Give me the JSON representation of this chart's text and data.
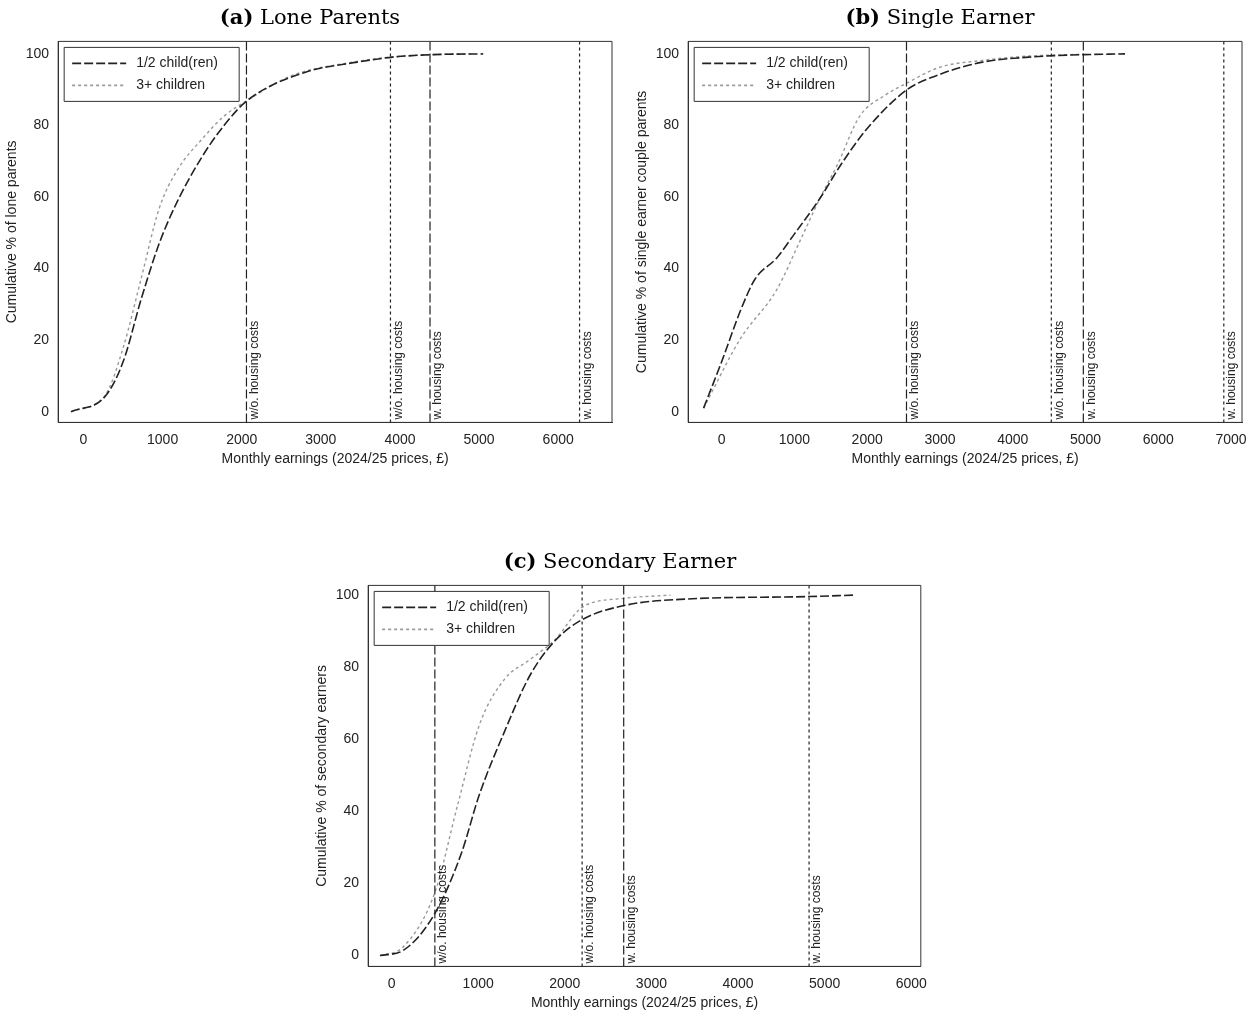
{
  "chart_data": [
    {
      "type": "line",
      "title": "(a) Lone Parents",
      "xlabel": "Monthly earnings (2024/25 prices, £)",
      "ylabel": "Cumulative % of lone parents",
      "xlim": [
        -320,
        6680
      ],
      "xticks": [
        0,
        1000,
        2000,
        3000,
        4000,
        5000,
        6000
      ],
      "ylim": [
        -3,
        103.5
      ],
      "yticks": [
        0,
        20,
        40,
        60,
        80,
        100
      ],
      "grid": false,
      "legend": "top left",
      "marker": "none",
      "series": [
        {
          "name": "1/2 child(ren)",
          "color": "#222222",
          "line_style": "dashed",
          "x": [
            -158,
            275,
            502,
            730,
            957,
            1185,
            1503,
            1776,
            2071,
            2777,
            3460,
            3911,
            4415,
            5052
          ],
          "values": [
            0,
            4.3,
            14,
            31.5,
            47,
            58.7,
            71.4,
            80,
            87,
            94.7,
            97.7,
            99.1,
            99.8,
            100
          ]
        },
        {
          "name": "3+ children",
          "color": "#999999",
          "line_style": "dotted",
          "x": [
            -158,
            275,
            502,
            730,
            957,
            1185,
            1503,
            1776,
            2071,
            2630,
            3460,
            3911,
            4415,
            4900
          ],
          "values": [
            0,
            4.6,
            17.9,
            37.3,
            56.8,
            67.5,
            76.3,
            82.6,
            87,
            93.9,
            97.9,
            99.2,
            99.8,
            100
          ]
        }
      ],
      "ref_lines": [
        {
          "axis": "x",
          "value": 2060,
          "label": "w/o. housing costs",
          "line_style": "dashed",
          "color": "#222222"
        },
        {
          "axis": "x",
          "value": 3880,
          "label": "w/o. housing costs",
          "line_style": "dotted",
          "color": "#222222"
        },
        {
          "axis": "x",
          "value": 4380,
          "label": "w. housing costs",
          "line_style": "dashed",
          "color": "#222222"
        },
        {
          "axis": "x",
          "value": 6270,
          "label": "w. housing costs",
          "line_style": "dotted",
          "color": "#222222"
        }
      ]
    },
    {
      "type": "line",
      "title": "(b) Single Earner",
      "xlabel": "Monthly earnings (2024/25 prices, £)",
      "ylabel": "Cumulative % of single earner couple parents",
      "xlim": [
        -460,
        7150
      ],
      "xticks": [
        0,
        1000,
        2000,
        3000,
        4000,
        5000,
        6000,
        7000
      ],
      "ylim": [
        -3,
        103.5
      ],
      "yticks": [
        0,
        20,
        40,
        60,
        80,
        100
      ],
      "grid": false,
      "legend": "top left",
      "marker": "none",
      "series": [
        {
          "name": "1/2 child(ren)",
          "color": "#222222",
          "line_style": "dashed",
          "x": [
            -248,
            10,
            258,
            457,
            754,
            1001,
            1347,
            1647,
            1994,
            2540,
            2986,
            3582,
            4222,
            4971,
            5543
          ],
          "values": [
            1,
            14.5,
            28.2,
            37,
            42.9,
            49.7,
            59.5,
            69.3,
            79,
            89.9,
            94.2,
            97.7,
            99.1,
            99.8,
            100
          ]
        },
        {
          "name": "3+ children",
          "color": "#999999",
          "line_style": "dotted",
          "x": [
            -248,
            258,
            754,
            1101,
            1347,
            1597,
            1894,
            2242,
            2540,
            2986,
            3582,
            4222,
            4971
          ],
          "values": [
            1,
            20.4,
            34,
            48.8,
            59.5,
            69.3,
            82.5,
            88.4,
            91.8,
            96.2,
            98.2,
            99.4,
            99.9
          ]
        }
      ],
      "ref_lines": [
        {
          "axis": "x",
          "value": 2540,
          "label": "w/o. housing costs",
          "line_style": "dashed",
          "color": "#222222"
        },
        {
          "axis": "x",
          "value": 4530,
          "label": "w/o. housing costs",
          "line_style": "dotted",
          "color": "#222222"
        },
        {
          "axis": "x",
          "value": 4970,
          "label": "w. housing costs",
          "line_style": "dashed",
          "color": "#222222"
        },
        {
          "axis": "x",
          "value": 6900,
          "label": "w. housing costs",
          "line_style": "dotted",
          "color": "#222222"
        }
      ]
    },
    {
      "type": "line",
      "title": "(c) Secondary Earner",
      "xlabel": "Monthly earnings (2024/25 prices, £)",
      "ylabel": "Cumulative % of secondary earners",
      "xlim": [
        -270,
        6110
      ],
      "xticks": [
        0,
        1000,
        2000,
        3000,
        4000,
        5000,
        6000
      ],
      "ylim": [
        -3,
        102.7
      ],
      "yticks": [
        0,
        20,
        40,
        60,
        80,
        100
      ],
      "grid": false,
      "legend": "top left",
      "marker": "none",
      "series": [
        {
          "name": "1/2 child(ren)",
          "color": "#222222",
          "line_style": "dashed",
          "x": [
            -133,
            139,
            500,
            805,
            1014,
            1305,
            1597,
            1889,
            2200,
            2680,
            3389,
            4818,
            5327
          ],
          "values": [
            0,
            1.5,
            11.7,
            28.3,
            44.7,
            62.2,
            77.7,
            87.4,
            93.2,
            97.1,
            98.9,
            99.6,
            100
          ]
        },
        {
          "name": "3+ children",
          "color": "#999999",
          "line_style": "dotted",
          "x": [
            -133,
            139,
            500,
            763,
            1014,
            1305,
            1597,
            1889,
            2200,
            2680,
            3221
          ],
          "values": [
            0,
            2.5,
            17.5,
            41.8,
            64,
            76.7,
            82.1,
            87.7,
            96.6,
            99.1,
            100
          ]
        }
      ],
      "ref_lines": [
        {
          "axis": "x",
          "value": 500,
          "label": "w/o. housing costs",
          "line_style": "dashed",
          "color": "#222222"
        },
        {
          "axis": "x",
          "value": 2200,
          "label": "w/o. housing costs",
          "line_style": "dotted",
          "color": "#222222"
        },
        {
          "axis": "x",
          "value": 2680,
          "label": "w. housing costs",
          "line_style": "dashed",
          "color": "#222222"
        },
        {
          "axis": "x",
          "value": 4820,
          "label": "w. housing costs",
          "line_style": "dotted",
          "color": "#222222"
        }
      ]
    }
  ]
}
